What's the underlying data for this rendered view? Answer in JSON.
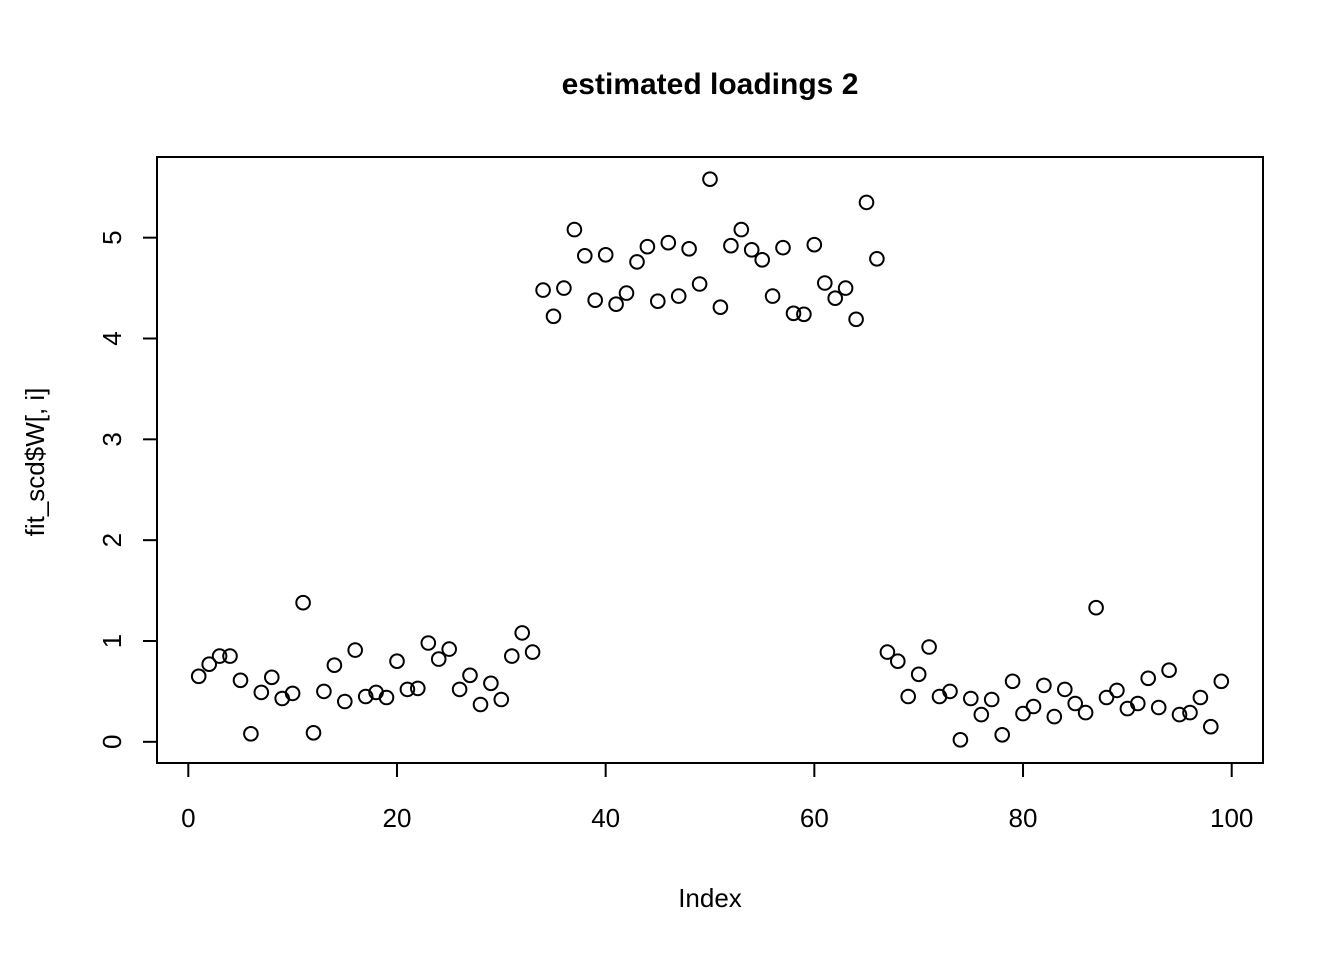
{
  "figure": {
    "title": "estimated loadings 2",
    "xlabel": "Index",
    "ylabel": "fit_scd$W[, i]"
  },
  "chart_data": {
    "type": "scatter",
    "title": "estimated loadings 2",
    "xlabel": "Index",
    "ylabel": "fit_scd$W[, i]",
    "marker": "open-circle",
    "marker_color": "#000000",
    "background_color": "#ffffff",
    "grid": false,
    "legend": "none",
    "x_ticks": [
      0,
      20,
      40,
      60,
      80,
      100
    ],
    "y_ticks": [
      0,
      1,
      2,
      3,
      4,
      5
    ],
    "xlim": [
      -3,
      103
    ],
    "ylim": [
      -0.21,
      5.8
    ],
    "x": [
      1,
      2,
      3,
      4,
      5,
      6,
      7,
      8,
      9,
      10,
      11,
      12,
      13,
      14,
      15,
      16,
      17,
      18,
      19,
      20,
      21,
      22,
      23,
      24,
      25,
      26,
      27,
      28,
      29,
      30,
      31,
      32,
      33,
      34,
      35,
      36,
      37,
      38,
      39,
      40,
      41,
      42,
      43,
      44,
      45,
      46,
      47,
      48,
      49,
      50,
      51,
      52,
      53,
      54,
      55,
      56,
      57,
      58,
      59,
      60,
      61,
      62,
      63,
      64,
      65,
      66,
      67,
      68,
      69,
      70,
      71,
      72,
      73,
      74,
      75,
      76,
      77,
      78,
      79,
      80,
      81,
      82,
      83,
      84,
      85,
      86,
      87,
      88,
      89,
      90,
      91,
      92,
      93,
      94,
      95,
      96,
      97,
      98,
      99
    ],
    "y": [
      0.65,
      0.77,
      0.85,
      0.85,
      0.61,
      0.08,
      0.49,
      0.64,
      0.43,
      0.48,
      1.38,
      0.09,
      0.5,
      0.76,
      0.4,
      0.91,
      0.45,
      0.49,
      0.44,
      0.8,
      0.52,
      0.53,
      0.98,
      0.82,
      0.92,
      0.52,
      0.66,
      0.37,
      0.58,
      0.42,
      0.85,
      1.08,
      0.89,
      4.48,
      4.22,
      4.5,
      5.08,
      4.82,
      4.38,
      4.83,
      4.34,
      4.45,
      4.76,
      4.91,
      4.37,
      4.95,
      4.42,
      4.89,
      4.54,
      5.58,
      4.31,
      4.92,
      5.08,
      4.88,
      4.78,
      4.42,
      4.9,
      4.25,
      4.24,
      4.93,
      4.55,
      4.4,
      4.5,
      4.19,
      5.35,
      4.79,
      0.89,
      0.8,
      0.45,
      0.67,
      0.94,
      0.45,
      0.5,
      0.02,
      0.43,
      0.27,
      0.42,
      0.07,
      0.6,
      0.28,
      0.35,
      0.56,
      0.25,
      0.52,
      0.38,
      0.29,
      1.33,
      0.44,
      0.51,
      0.33,
      0.38,
      0.63,
      0.34,
      0.71,
      0.27,
      0.29,
      0.44,
      0.15,
      0.6
    ]
  }
}
